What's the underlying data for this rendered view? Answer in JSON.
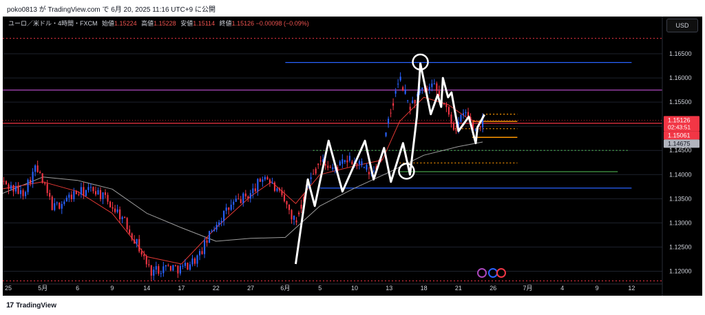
{
  "published_text": "poko0813 が TradingView.com で 6月 20, 2025 11:16 UTC+9 に公開",
  "header": {
    "symbol": "ユーロ／米ドル・4時間・FXCM",
    "open_label": "始値",
    "open": "1.15224",
    "high_label": "高値",
    "high": "1.15228",
    "low_label": "安値",
    "low": "1.15114",
    "close_label": "終値",
    "close": "1.15126",
    "change": "−0.00098 (−0.09%)"
  },
  "currency_button": "USD",
  "footer": {
    "logo_text": "TradingView",
    "logo_mark": "17"
  },
  "colors": {
    "up": "#2962ff",
    "down": "#f23645",
    "ema_fast": "#e53935",
    "ema_slow": "#9e9e9e",
    "blue_line": "#2962ff",
    "purple_line": "#ab47bc",
    "red_line": "#f23645",
    "orange_dots": "#ff9800",
    "green_dots": "#4caf50",
    "green_line": "#4caf50",
    "zigzag": "#ffffff",
    "price_label_red": "#f23645",
    "price_label_gray": "#b2b5be"
  },
  "chart_data": {
    "type": "candlestick",
    "ylim": [
      1.1175,
      1.169
    ],
    "y_ticks": [
      "1.16500",
      "1.16000",
      "1.15500",
      "1.15000",
      "1.14500",
      "1.14000",
      "1.13500",
      "1.13000",
      "1.12500",
      "1.12000"
    ],
    "x_ticks": [
      "25",
      "5月",
      "6",
      "9",
      "14",
      "17",
      "22",
      "27",
      "6月",
      "5",
      "10",
      "13",
      "18",
      "21",
      "26",
      "7月",
      "4",
      "9",
      "12"
    ],
    "price_labels": [
      {
        "text": "1.15126",
        "sub": "02:43:51",
        "value": 1.15126,
        "style": "red"
      },
      {
        "text": "1.15061",
        "value": 1.15061,
        "style": "red"
      },
      {
        "text": "1.14675",
        "value": 1.14675,
        "style": "gray"
      }
    ],
    "horizontal_levels": [
      {
        "value": 1.1632,
        "style": "blue",
        "from_tick": 8.0,
        "to_tick": 18.0
      },
      {
        "value": 1.1575,
        "style": "purple",
        "from_tick": -0.2,
        "to_tick": 19.0
      },
      {
        "value": 1.15061,
        "style": "red",
        "from_tick": -0.2,
        "to_tick": 19.0
      },
      {
        "value": 1.1372,
        "style": "blue",
        "from_tick": 9.0,
        "to_tick": 18.0
      },
      {
        "value": 1.1406,
        "style": "green",
        "from_tick": 11.3,
        "to_tick": 17.6
      },
      {
        "value": 1.118,
        "style": "red_dotted",
        "from_tick": -0.2,
        "to_tick": 19.0
      },
      {
        "value": 1.1682,
        "style": "red_dotted",
        "from_tick": -0.2,
        "to_tick": 19.0
      },
      {
        "value": 1.15126,
        "style": "red_dotted_thin",
        "from_tick": -0.2,
        "to_tick": 19.0
      },
      {
        "value": 1.145,
        "style": "green_dotted",
        "from_tick": 8.8,
        "to_tick": 17.9
      },
      {
        "value": 1.1525,
        "style": "orange_dotted",
        "from_tick": 13.7,
        "to_tick": 14.7
      },
      {
        "value": 1.1495,
        "style": "orange_dotted",
        "from_tick": 12.9,
        "to_tick": 14.7
      },
      {
        "value": 1.1424,
        "style": "orange_dotted",
        "from_tick": 11.2,
        "to_tick": 14.7
      },
      {
        "value": 1.151,
        "style": "orange",
        "from_tick": 13.4,
        "to_tick": 14.7
      },
      {
        "value": 1.1477,
        "style": "orange",
        "from_tick": 13.4,
        "to_tick": 14.7
      }
    ],
    "anchors": [
      {
        "tick": -0.2,
        "value": 1.1385
      },
      {
        "tick": 0.4,
        "value": 1.136
      },
      {
        "tick": 0.8,
        "value": 1.1415
      },
      {
        "tick": 1.3,
        "value": 1.133
      },
      {
        "tick": 1.9,
        "value": 1.136
      },
      {
        "tick": 2.5,
        "value": 1.137
      },
      {
        "tick": 3.2,
        "value": 1.132
      },
      {
        "tick": 3.7,
        "value": 1.126
      },
      {
        "tick": 4.1,
        "value": 1.12
      },
      {
        "tick": 4.6,
        "value": 1.121
      },
      {
        "tick": 5.0,
        "value": 1.1205
      },
      {
        "tick": 5.5,
        "value": 1.123
      },
      {
        "tick": 6.0,
        "value": 1.13
      },
      {
        "tick": 6.5,
        "value": 1.134
      },
      {
        "tick": 7.0,
        "value": 1.136
      },
      {
        "tick": 7.4,
        "value": 1.14
      },
      {
        "tick": 7.7,
        "value": 1.137
      },
      {
        "tick": 8.0,
        "value": 1.134
      },
      {
        "tick": 8.3,
        "value": 1.13
      },
      {
        "tick": 8.6,
        "value": 1.137
      },
      {
        "tick": 9.0,
        "value": 1.143
      },
      {
        "tick": 9.4,
        "value": 1.141
      },
      {
        "tick": 9.8,
        "value": 1.143
      },
      {
        "tick": 10.2,
        "value": 1.142
      },
      {
        "tick": 10.5,
        "value": 1.14
      },
      {
        "tick": 10.8,
        "value": 1.144
      },
      {
        "tick": 11.0,
        "value": 1.1515
      },
      {
        "tick": 11.3,
        "value": 1.16
      },
      {
        "tick": 11.6,
        "value": 1.154
      },
      {
        "tick": 11.9,
        "value": 1.157
      },
      {
        "tick": 12.3,
        "value": 1.158
      },
      {
        "tick": 12.6,
        "value": 1.154
      },
      {
        "tick": 12.9,
        "value": 1.1495
      },
      {
        "tick": 13.2,
        "value": 1.153
      },
      {
        "tick": 13.45,
        "value": 1.149
      },
      {
        "tick": 13.7,
        "value": 1.1513
      }
    ],
    "candle_range": {
      "from_tick": -0.2,
      "to_tick": 13.7,
      "count": 200
    },
    "ema_slow": [
      {
        "tick": -0.2,
        "value": 1.136
      },
      {
        "tick": 1.0,
        "value": 1.1395
      },
      {
        "tick": 2.0,
        "value": 1.1388
      },
      {
        "tick": 3.0,
        "value": 1.137
      },
      {
        "tick": 4.0,
        "value": 1.132
      },
      {
        "tick": 5.0,
        "value": 1.129
      },
      {
        "tick": 6.0,
        "value": 1.1262
      },
      {
        "tick": 7.0,
        "value": 1.1268
      },
      {
        "tick": 8.0,
        "value": 1.127
      },
      {
        "tick": 9.0,
        "value": 1.1335
      },
      {
        "tick": 10.0,
        "value": 1.1372
      },
      {
        "tick": 11.0,
        "value": 1.1405
      },
      {
        "tick": 12.0,
        "value": 1.144
      },
      {
        "tick": 13.0,
        "value": 1.1458
      },
      {
        "tick": 13.7,
        "value": 1.14675
      }
    ],
    "ema_fast": [
      {
        "tick": -0.2,
        "value": 1.137
      },
      {
        "tick": 1.0,
        "value": 1.1385
      },
      {
        "tick": 2.0,
        "value": 1.1365
      },
      {
        "tick": 3.0,
        "value": 1.132
      },
      {
        "tick": 4.0,
        "value": 1.123
      },
      {
        "tick": 5.0,
        "value": 1.1215
      },
      {
        "tick": 6.0,
        "value": 1.129
      },
      {
        "tick": 7.0,
        "value": 1.1355
      },
      {
        "tick": 7.6,
        "value": 1.1385
      },
      {
        "tick": 8.3,
        "value": 1.134
      },
      {
        "tick": 9.0,
        "value": 1.14
      },
      {
        "tick": 10.0,
        "value": 1.1418
      },
      {
        "tick": 10.8,
        "value": 1.143
      },
      {
        "tick": 11.3,
        "value": 1.151
      },
      {
        "tick": 12.0,
        "value": 1.156
      },
      {
        "tick": 12.7,
        "value": 1.1545
      },
      {
        "tick": 13.3,
        "value": 1.1515
      },
      {
        "tick": 13.7,
        "value": 1.15061
      }
    ],
    "zigzag": [
      {
        "tick": 8.3,
        "value": 1.1215
      },
      {
        "tick": 8.65,
        "value": 1.139
      },
      {
        "tick": 8.85,
        "value": 1.1335
      },
      {
        "tick": 9.25,
        "value": 1.147
      },
      {
        "tick": 9.65,
        "value": 1.1365
      },
      {
        "tick": 10.3,
        "value": 1.147
      },
      {
        "tick": 10.55,
        "value": 1.139
      },
      {
        "tick": 10.85,
        "value": 1.1455
      },
      {
        "tick": 11.05,
        "value": 1.1385
      },
      {
        "tick": 11.4,
        "value": 1.1465
      },
      {
        "tick": 11.6,
        "value": 1.14
      },
      {
        "tick": 11.8,
        "value": 1.152
      },
      {
        "tick": 11.9,
        "value": 1.163
      },
      {
        "tick": 12.2,
        "value": 1.1525
      },
      {
        "tick": 12.4,
        "value": 1.1565
      },
      {
        "tick": 12.5,
        "value": 1.154
      },
      {
        "tick": 12.55,
        "value": 1.16
      },
      {
        "tick": 12.7,
        "value": 1.156
      },
      {
        "tick": 12.8,
        "value": 1.157
      },
      {
        "tick": 13.0,
        "value": 1.149
      },
      {
        "tick": 13.3,
        "value": 1.152
      },
      {
        "tick": 13.5,
        "value": 1.1465
      },
      {
        "tick": 13.55,
        "value": 1.1498
      },
      {
        "tick": 13.75,
        "value": 1.1524
      }
    ],
    "circles": [
      {
        "tick": 11.9,
        "value": 1.1633
      },
      {
        "tick": 11.5,
        "value": 1.1407
      }
    ]
  }
}
